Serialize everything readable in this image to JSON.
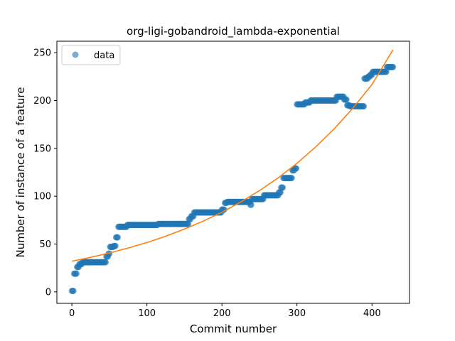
{
  "chart_data": {
    "type": "scatter",
    "title": "org-ligi-gobandroid_lambda-exponential",
    "xlabel": "Commit number",
    "ylabel": "Number of instance of a feature",
    "xlim": [
      -20,
      450
    ],
    "ylim": [
      -12,
      262
    ],
    "xticks": [
      0,
      100,
      200,
      300,
      400
    ],
    "yticks": [
      0,
      50,
      100,
      150,
      200,
      250
    ],
    "legend": {
      "position": "top-left",
      "entries": [
        "data"
      ]
    },
    "colors": {
      "data": "#1f77b4",
      "fit": "#ff7f0e"
    },
    "series": [
      {
        "name": "data",
        "kind": "points",
        "segments": [
          [
            0,
            2,
            1
          ],
          [
            3,
            6,
            19
          ],
          [
            7,
            9,
            26
          ],
          [
            10,
            13,
            29
          ],
          [
            14,
            17,
            31
          ],
          [
            18,
            45,
            31
          ],
          [
            46,
            48,
            37
          ],
          [
            49,
            50,
            40
          ],
          [
            51,
            55,
            47
          ],
          [
            56,
            58,
            48
          ],
          [
            59,
            61,
            57
          ],
          [
            62,
            73,
            68
          ],
          [
            74,
            114,
            70
          ],
          [
            115,
            155,
            71
          ],
          [
            156,
            158,
            76
          ],
          [
            159,
            162,
            79
          ],
          [
            163,
            199,
            83
          ],
          [
            200,
            203,
            86
          ],
          [
            204,
            206,
            93
          ],
          [
            207,
            237,
            94
          ],
          [
            238,
            239,
            91
          ],
          [
            240,
            255,
            97
          ],
          [
            256,
            275,
            101
          ],
          [
            276,
            278,
            104
          ],
          [
            279,
            281,
            109
          ],
          [
            282,
            293,
            119
          ],
          [
            294,
            296,
            127
          ],
          [
            297,
            299,
            129
          ],
          [
            300,
            310,
            196
          ],
          [
            311,
            317,
            198
          ],
          [
            318,
            352,
            200
          ],
          [
            353,
            362,
            204
          ],
          [
            363,
            366,
            201
          ],
          [
            367,
            370,
            195
          ],
          [
            371,
            389,
            194
          ],
          [
            390,
            394,
            223
          ],
          [
            395,
            397,
            225
          ],
          [
            398,
            400,
            227
          ],
          [
            401,
            419,
            230
          ],
          [
            420,
            428,
            235
          ]
        ]
      },
      {
        "name": "fit",
        "kind": "curve",
        "x": [
          0,
          25,
          50,
          75,
          100,
          125,
          150,
          175,
          200,
          225,
          250,
          275,
          300,
          325,
          350,
          375,
          400,
          428
        ],
        "y": [
          32,
          36.1,
          40.6,
          45.8,
          51.6,
          58.2,
          65.6,
          73.9,
          83.3,
          93.9,
          105.8,
          119.2,
          134.4,
          151.5,
          170.7,
          192.4,
          216.8,
          253
        ]
      }
    ]
  }
}
